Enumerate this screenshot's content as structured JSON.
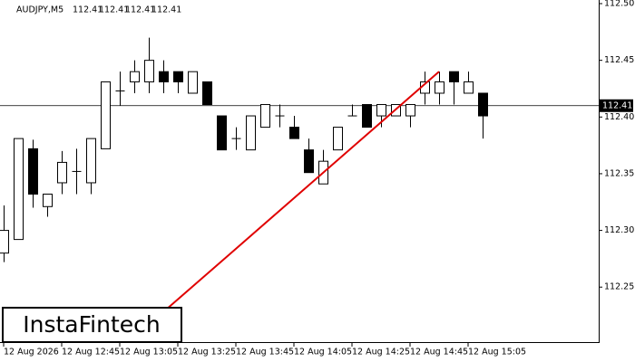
{
  "chart_data": {
    "type": "candlestick",
    "symbol": "AUDJPY,M5",
    "header_values": [
      "112.41",
      "112.41",
      "112.41",
      "112.41"
    ],
    "categories": [
      "12 Aug 2026",
      null,
      null,
      null,
      "12 Aug 12:45",
      null,
      null,
      null,
      "12 Aug 13:05",
      null,
      null,
      null,
      "12 Aug 13:25",
      null,
      null,
      null,
      "12 Aug 13:45",
      null,
      null,
      null,
      "12 Aug 14:05",
      null,
      null,
      null,
      "12 Aug 14:25",
      null,
      null,
      null,
      "12 Aug 14:45",
      null,
      null,
      null,
      "12 Aug 15:05",
      null
    ],
    "open": [
      112.28,
      112.292,
      112.372,
      112.321,
      112.342,
      112.352,
      112.342,
      112.372,
      112.423,
      112.431,
      112.431,
      112.44,
      112.44,
      112.421,
      112.431,
      112.401,
      112.381,
      112.371,
      112.391,
      112.401,
      112.391,
      112.371,
      112.341,
      112.371,
      112.401,
      112.411,
      112.401,
      112.401,
      112.401,
      112.421,
      112.421,
      112.44,
      112.421,
      112.421
    ],
    "high": [
      112.322,
      112.381,
      112.38,
      112.332,
      112.37,
      112.372,
      112.381,
      112.431,
      112.44,
      112.45,
      112.47,
      112.45,
      112.44,
      112.44,
      112.431,
      112.401,
      112.391,
      112.401,
      112.411,
      112.411,
      112.401,
      112.381,
      112.371,
      112.391,
      112.411,
      112.411,
      112.411,
      112.411,
      112.411,
      112.44,
      112.44,
      112.44,
      112.44,
      112.421
    ],
    "low": [
      112.272,
      112.292,
      112.32,
      112.312,
      112.332,
      112.332,
      112.332,
      112.372,
      112.41,
      112.421,
      112.421,
      112.421,
      112.421,
      112.421,
      112.411,
      112.371,
      112.371,
      112.371,
      112.391,
      112.391,
      112.381,
      112.351,
      112.341,
      112.371,
      112.401,
      112.391,
      112.391,
      112.401,
      112.391,
      112.411,
      112.411,
      112.411,
      112.421,
      112.381
    ],
    "close": [
      112.3,
      112.381,
      112.332,
      112.332,
      112.36,
      112.352,
      112.381,
      112.431,
      112.423,
      112.44,
      112.45,
      112.431,
      112.431,
      112.44,
      112.411,
      112.371,
      112.381,
      112.401,
      112.411,
      112.401,
      112.381,
      112.351,
      112.361,
      112.391,
      112.401,
      112.391,
      112.411,
      112.411,
      112.411,
      112.431,
      112.431,
      112.431,
      112.431,
      112.401
    ],
    "up_color": "#ffffff",
    "down_color": "#000000",
    "ylim": [
      112.2015,
      112.5032
    ],
    "yticks": [
      {
        "value": 112.25,
        "label": "112.25"
      },
      {
        "value": 112.3,
        "label": "112.30"
      },
      {
        "value": 112.35,
        "label": "112.35"
      },
      {
        "value": 112.4,
        "label": "112.40"
      },
      {
        "value": 112.45,
        "label": "112.45"
      },
      {
        "value": 112.5,
        "label": "112.50"
      }
    ],
    "current_price": {
      "value": 112.41,
      "label": "112.41"
    },
    "trend_line": {
      "color": "#e00000",
      "x": [
        11,
        30
      ],
      "y": [
        112.228,
        112.44
      ]
    },
    "brand": "InstaFintech"
  }
}
